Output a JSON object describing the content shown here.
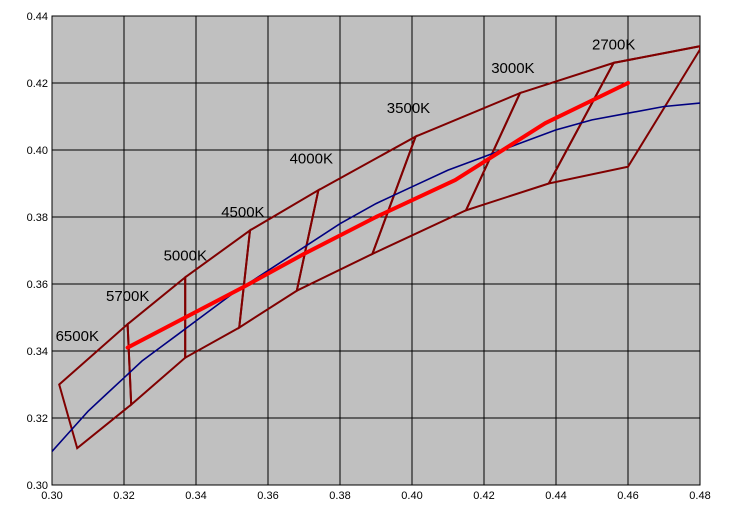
{
  "chart_data": {
    "type": "line",
    "title": "",
    "xlabel": "",
    "ylabel": "",
    "xlim": [
      0.3,
      0.48
    ],
    "ylim": [
      0.3,
      0.44
    ],
    "x_ticks": [
      "0.30",
      "0.32",
      "0.34",
      "0.36",
      "0.38",
      "0.40",
      "0.42",
      "0.44",
      "0.46",
      "0.48"
    ],
    "y_ticks": [
      "0.30",
      "0.32",
      "0.34",
      "0.36",
      "0.38",
      "0.40",
      "0.42",
      "0.44"
    ],
    "grid": true,
    "legend": "none",
    "colors": {
      "plot_background": "#c0c0c0",
      "grid": "#000000",
      "quadrangles": "#800000",
      "planckian_locus": "#000080",
      "cct_line": "#ff0000"
    },
    "planckian_locus": [
      [
        0.3,
        0.31
      ],
      [
        0.305,
        0.316
      ],
      [
        0.31,
        0.322
      ],
      [
        0.315,
        0.327
      ],
      [
        0.32,
        0.332
      ],
      [
        0.325,
        0.337
      ],
      [
        0.33,
        0.341
      ],
      [
        0.335,
        0.345
      ],
      [
        0.34,
        0.349
      ],
      [
        0.345,
        0.353
      ],
      [
        0.35,
        0.357
      ],
      [
        0.36,
        0.364
      ],
      [
        0.37,
        0.371
      ],
      [
        0.38,
        0.378
      ],
      [
        0.39,
        0.384
      ],
      [
        0.4,
        0.389
      ],
      [
        0.41,
        0.394
      ],
      [
        0.42,
        0.398
      ],
      [
        0.43,
        0.402
      ],
      [
        0.44,
        0.406
      ],
      [
        0.45,
        0.409
      ],
      [
        0.46,
        0.411
      ],
      [
        0.47,
        0.413
      ],
      [
        0.48,
        0.414
      ]
    ],
    "cct_line": [
      [
        0.321,
        0.341
      ],
      [
        0.337,
        0.35
      ],
      [
        0.353,
        0.359
      ],
      [
        0.37,
        0.369
      ],
      [
        0.39,
        0.38
      ],
      [
        0.412,
        0.391
      ],
      [
        0.437,
        0.408
      ],
      [
        0.46,
        0.42
      ]
    ],
    "quadrangles": [
      {
        "name": "6500K",
        "points": [
          [
            0.302,
            0.33
          ],
          [
            0.321,
            0.348
          ],
          [
            0.322,
            0.324
          ],
          [
            0.307,
            0.311
          ]
        ]
      },
      {
        "name": "5700K",
        "points": [
          [
            0.321,
            0.348
          ],
          [
            0.337,
            0.362
          ],
          [
            0.337,
            0.338
          ],
          [
            0.322,
            0.324
          ]
        ]
      },
      {
        "name": "5000K",
        "points": [
          [
            0.337,
            0.362
          ],
          [
            0.355,
            0.376
          ],
          [
            0.352,
            0.347
          ],
          [
            0.337,
            0.338
          ]
        ]
      },
      {
        "name": "4500K",
        "points": [
          [
            0.355,
            0.376
          ],
          [
            0.374,
            0.388
          ],
          [
            0.368,
            0.358
          ],
          [
            0.352,
            0.347
          ]
        ]
      },
      {
        "name": "4000K",
        "points": [
          [
            0.374,
            0.388
          ],
          [
            0.401,
            0.404
          ],
          [
            0.389,
            0.369
          ],
          [
            0.368,
            0.358
          ]
        ]
      },
      {
        "name": "3500K",
        "points": [
          [
            0.401,
            0.404
          ],
          [
            0.43,
            0.417
          ],
          [
            0.415,
            0.382
          ],
          [
            0.389,
            0.369
          ]
        ]
      },
      {
        "name": "3000K",
        "points": [
          [
            0.43,
            0.417
          ],
          [
            0.456,
            0.426
          ],
          [
            0.438,
            0.39
          ],
          [
            0.415,
            0.382
          ]
        ]
      },
      {
        "name": "2700K",
        "points": [
          [
            0.456,
            0.426
          ],
          [
            0.48,
            0.431
          ],
          [
            0.48,
            0.43
          ],
          [
            0.46,
            0.395
          ],
          [
            0.438,
            0.39
          ]
        ]
      }
    ],
    "outer_boundary_top": [
      [
        0.456,
        0.426
      ],
      [
        0.48,
        0.431
      ]
    ],
    "annotations": [
      {
        "text": "6500K",
        "x": 0.301,
        "y": 0.343
      },
      {
        "text": "5700K",
        "x": 0.315,
        "y": 0.355
      },
      {
        "text": "5000K",
        "x": 0.331,
        "y": 0.367
      },
      {
        "text": "4500K",
        "x": 0.347,
        "y": 0.38
      },
      {
        "text": "4000K",
        "x": 0.366,
        "y": 0.396
      },
      {
        "text": "3500K",
        "x": 0.393,
        "y": 0.411
      },
      {
        "text": "3000K",
        "x": 0.422,
        "y": 0.423
      },
      {
        "text": "2700K",
        "x": 0.45,
        "y": 0.43
      }
    ]
  }
}
